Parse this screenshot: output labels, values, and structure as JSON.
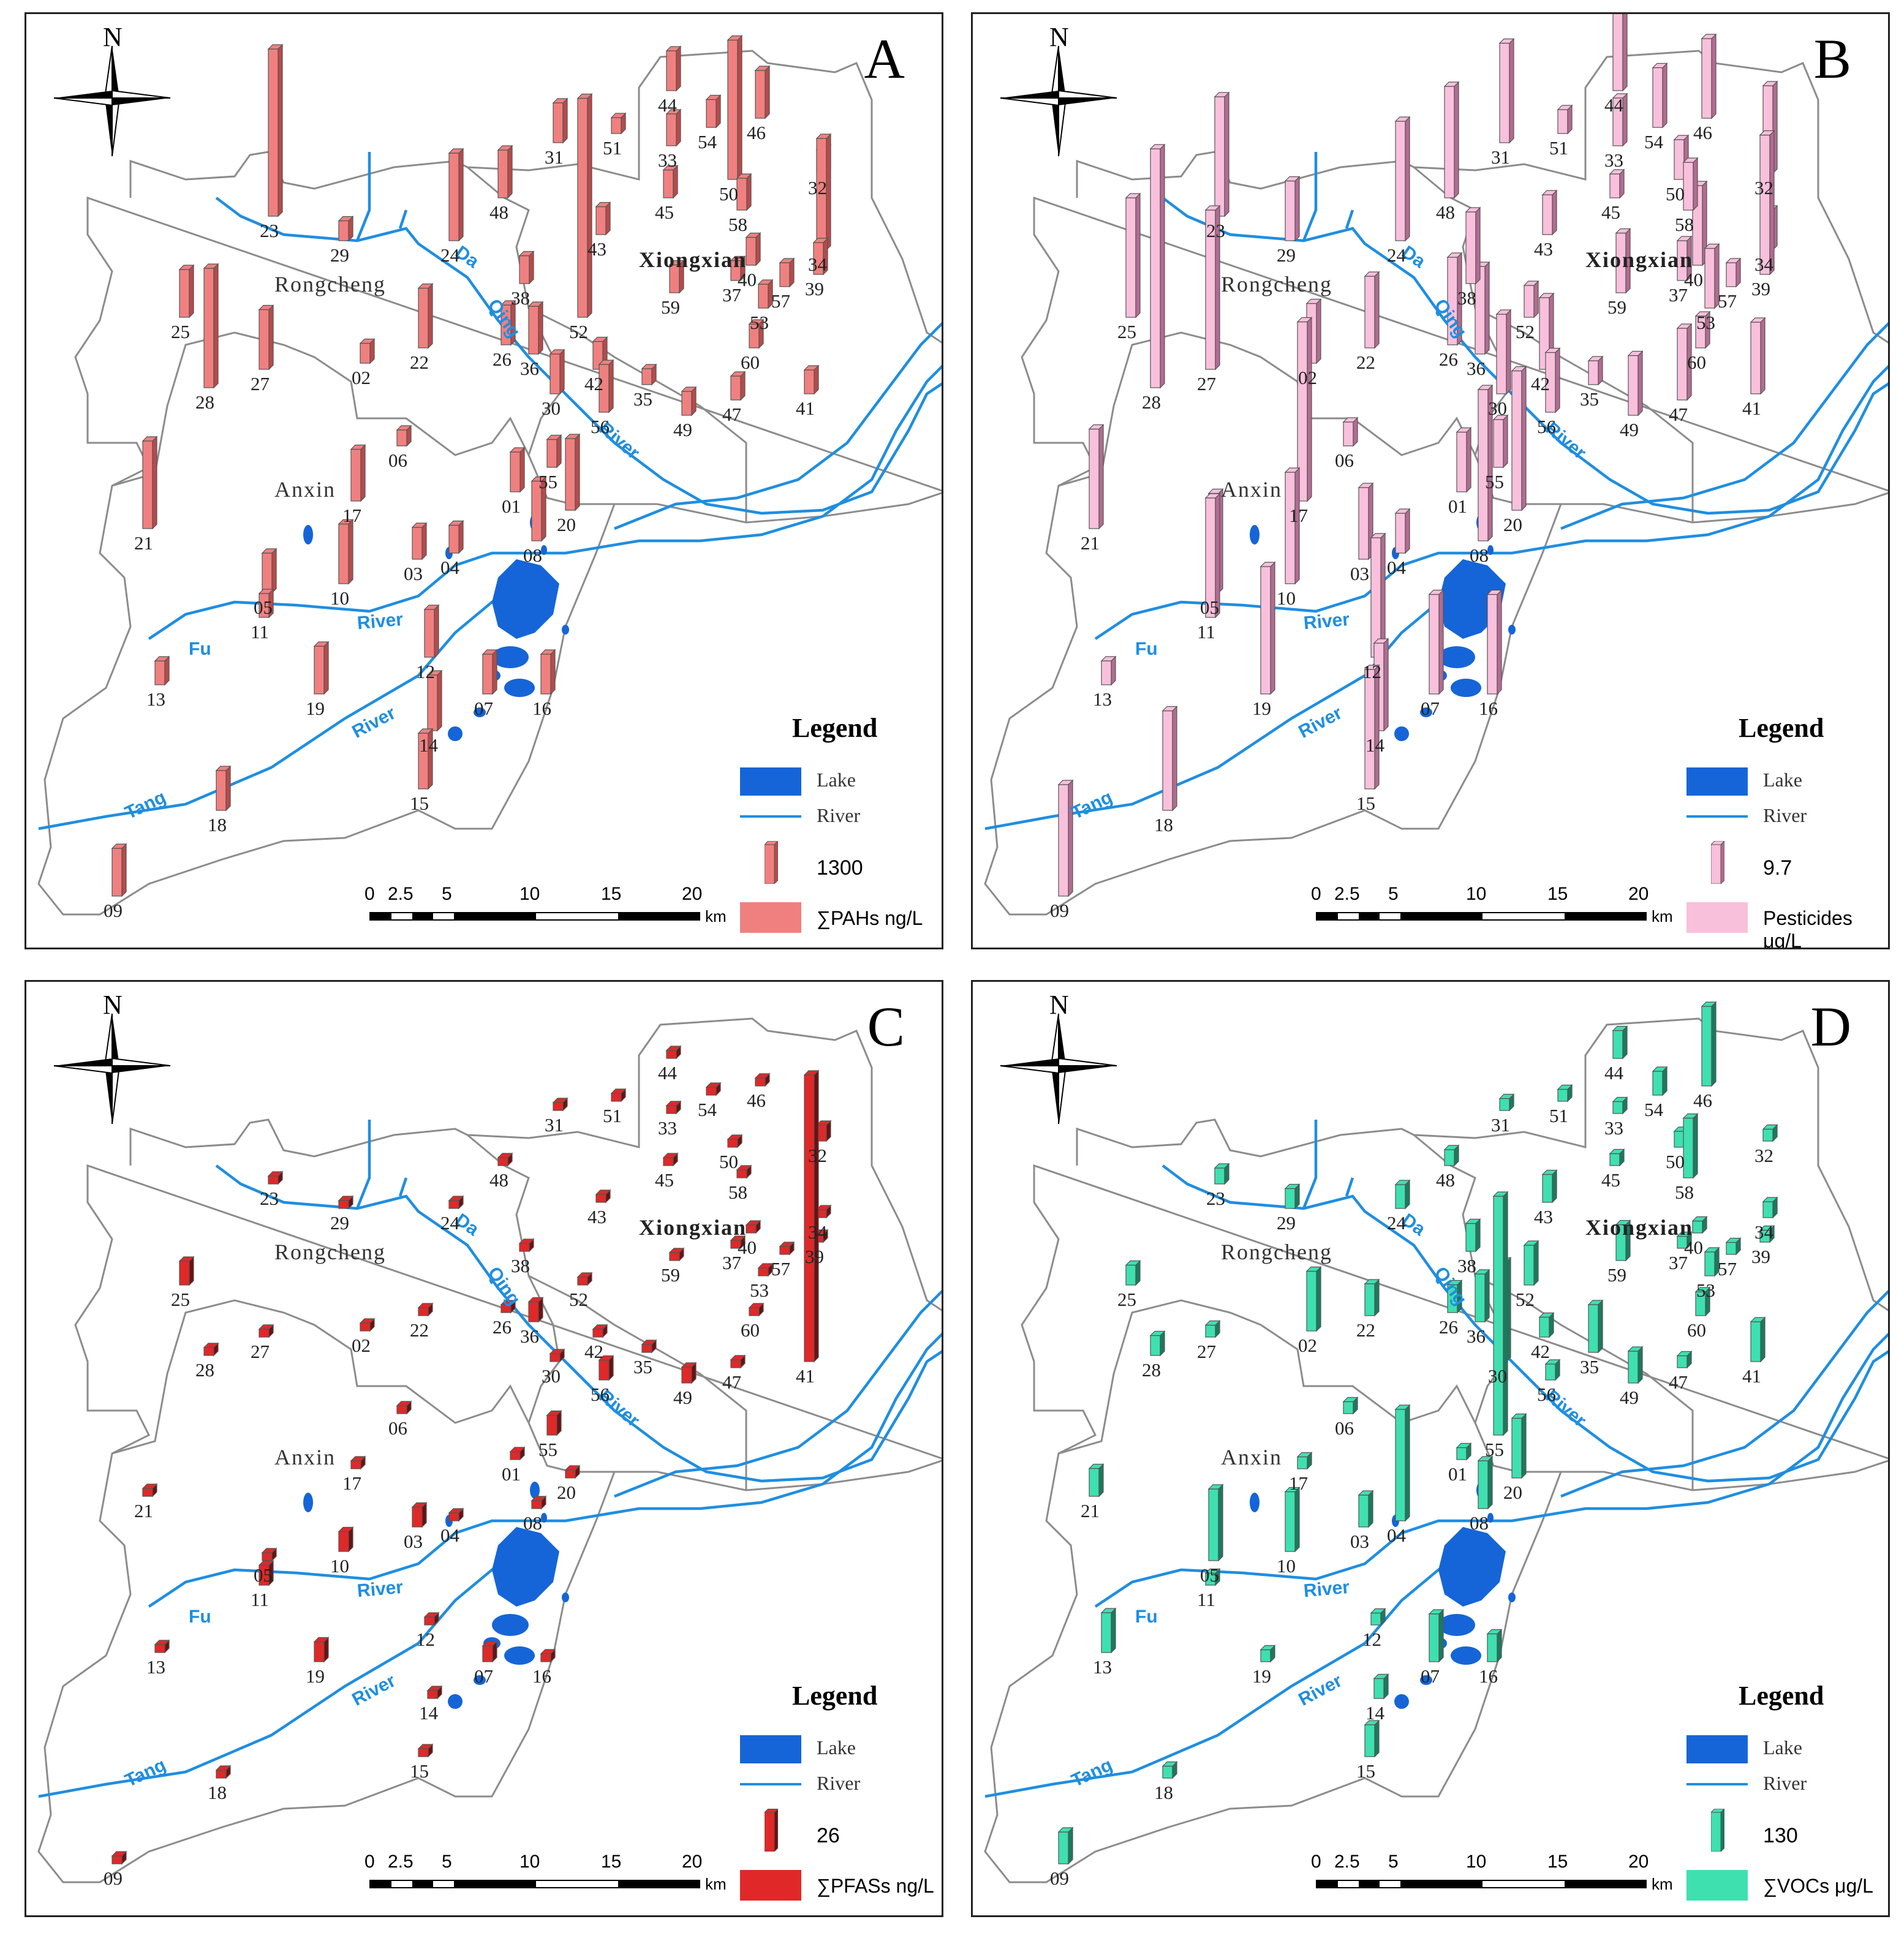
{
  "places": {
    "rongcheng": "Rongcheng",
    "anxin": "Anxin",
    "xiongxian": "Xiongxian"
  },
  "rivers": {
    "da": "Da",
    "qing": "Qing",
    "river": "River",
    "fu": "Fu",
    "tang": "Tang"
  },
  "legend": {
    "title": "Legend",
    "lake": "Lake",
    "river": "River"
  },
  "scale": {
    "ticks": [
      "0",
      "2.5",
      "5",
      "10",
      "15",
      "20"
    ],
    "unit": "km"
  },
  "colors": {
    "lake": "#1565d8",
    "river": "#1f8ee0",
    "boundary": "#8c8c8c"
  },
  "sites": [
    "01",
    "02",
    "03",
    "04",
    "05",
    "06",
    "07",
    "08",
    "09",
    "11",
    "12",
    "13",
    "14",
    "15",
    "16",
    "17",
    "18",
    "19",
    "20",
    "21",
    "22",
    "23",
    "24",
    "25",
    "26",
    "27",
    "28",
    "29",
    "30",
    "31",
    "32",
    "33",
    "34",
    "35",
    "36",
    "37",
    "38",
    "39",
    "40",
    "41",
    "42",
    "43",
    "44",
    "45",
    "46",
    "47",
    "48",
    "49",
    "50",
    "51",
    "52",
    "53",
    "54",
    "55",
    "56",
    "57",
    "58",
    "59",
    "60",
    "10"
  ],
  "panels": [
    {
      "letter": "A",
      "legend_value": "1300",
      "legend_unit": "∑PAHs ng/L",
      "bar_color": "#f08080",
      "bar_dark": "#b84a4a",
      "values": {
        "23": 0.42,
        "52": 0.55,
        "50": 0.35,
        "24": 0.22,
        "28": 0.3,
        "21": 0.22,
        "34": 0.28,
        "29": 0.05,
        "27": 0.15,
        "25": 0.12,
        "22": 0.15,
        "02": 0.05,
        "48": 0.12,
        "31": 0.1,
        "51": 0.04,
        "44": 0.1,
        "33": 0.08,
        "54": 0.07,
        "46": 0.12,
        "32": 0.06,
        "45": 0.07,
        "58": 0.08,
        "43": 0.07,
        "40": 0.07,
        "39": 0.08,
        "37": 0.05,
        "57": 0.06,
        "53": 0.06,
        "59": 0.07,
        "60": 0.06,
        "38": 0.07,
        "26": 0.1,
        "36": 0.12,
        "42": 0.07,
        "35": 0.04,
        "56": 0.12,
        "47": 0.06,
        "49": 0.06,
        "41": 0.06,
        "30": 0.1,
        "06": 0.04,
        "17": 0.13,
        "55": 0.07,
        "01": 0.1,
        "20": 0.18,
        "08": 0.15,
        "03": 0.08,
        "04": 0.07,
        "10": 0.15,
        "05": 0.1,
        "11": 0.06,
        "12": 0.12,
        "07": 0.1,
        "16": 0.1,
        "19": 0.12,
        "14": 0.14,
        "13": 0.06,
        "15": 0.14,
        "18": 0.1,
        "09": 0.12
      }
    },
    {
      "letter": "B",
      "legend_value": "9.7",
      "legend_unit": "Pesticides μg/L",
      "bar_color": "#f9c0dc",
      "bar_dark": "#b36b91",
      "values": {
        "23": 0.3,
        "52": 0.08,
        "50": 0.1,
        "24": 0.3,
        "28": 0.6,
        "21": 0.25,
        "34": 0.1,
        "29": 0.15,
        "27": 0.4,
        "25": 0.3,
        "22": 0.18,
        "02": 0.15,
        "48": 0.28,
        "31": 0.25,
        "51": 0.06,
        "44": 0.25,
        "33": 0.12,
        "54": 0.15,
        "46": 0.2,
        "32": 0.22,
        "45": 0.06,
        "58": 0.12,
        "43": 0.1,
        "40": 0.2,
        "39": 0.35,
        "37": 0.1,
        "57": 0.06,
        "53": 0.15,
        "59": 0.15,
        "60": 0.08,
        "38": 0.18,
        "26": 0.22,
        "36": 0.22,
        "42": 0.18,
        "35": 0.06,
        "56": 0.15,
        "47": 0.18,
        "49": 0.15,
        "41": 0.18,
        "30": 0.2,
        "06": 0.06,
        "17": 0.45,
        "55": 0.12,
        "01": 0.15,
        "20": 0.35,
        "08": 0.38,
        "03": 0.18,
        "04": 0.1,
        "10": 0.28,
        "05": 0.25,
        "11": 0.3,
        "12": 0.3,
        "07": 0.25,
        "16": 0.25,
        "19": 0.32,
        "14": 0.22,
        "13": 0.06,
        "15": 0.3,
        "18": 0.25,
        "09": 0.28
      }
    },
    {
      "letter": "C",
      "legend_value": "26",
      "legend_unit": "∑PFASs ng/L",
      "bar_color": "#e02828",
      "bar_dark": "#6e1010",
      "values": {
        "23": 0.02,
        "52": 0.02,
        "50": 0.02,
        "24": 0.02,
        "28": 0.02,
        "21": 0.02,
        "34": 0.02,
        "29": 0.02,
        "27": 0.02,
        "25": 0.06,
        "22": 0.02,
        "02": 0.02,
        "48": 0.02,
        "31": 0.02,
        "51": 0.02,
        "44": 0.02,
        "33": 0.02,
        "54": 0.02,
        "46": 0.02,
        "32": 0.04,
        "45": 0.02,
        "58": 0.02,
        "43": 0.02,
        "40": 0.02,
        "39": 0.02,
        "37": 0.02,
        "57": 0.02,
        "53": 0.02,
        "59": 0.02,
        "60": 0.02,
        "38": 0.02,
        "26": 0.02,
        "36": 0.05,
        "42": 0.02,
        "35": 0.02,
        "56": 0.05,
        "47": 0.02,
        "49": 0.04,
        "41": 0.72,
        "30": 0.02,
        "06": 0.02,
        "17": 0.02,
        "55": 0.05,
        "01": 0.02,
        "20": 0.02,
        "08": 0.02,
        "03": 0.05,
        "04": 0.02,
        "10": 0.05,
        "05": 0.02,
        "11": 0.05,
        "12": 0.02,
        "07": 0.04,
        "16": 0.02,
        "19": 0.05,
        "14": 0.02,
        "13": 0.02,
        "15": 0.02,
        "18": 0.02,
        "09": 0.02
      }
    },
    {
      "letter": "D",
      "legend_value": "130",
      "legend_unit": "∑VOCs  μg/L",
      "bar_color": "#3ee0b0",
      "bar_dark": "#1a7a5e",
      "values": {
        "23": 0.04,
        "52": 0.1,
        "50": 0.04,
        "24": 0.06,
        "28": 0.05,
        "21": 0.07,
        "34": 0.04,
        "29": 0.05,
        "27": 0.03,
        "25": 0.05,
        "22": 0.08,
        "02": 0.15,
        "48": 0.04,
        "31": 0.03,
        "51": 0.03,
        "44": 0.07,
        "33": 0.03,
        "54": 0.06,
        "46": 0.2,
        "32": 0.03,
        "45": 0.03,
        "58": 0.15,
        "43": 0.07,
        "40": 0.03,
        "39": 0.03,
        "37": 0.03,
        "57": 0.03,
        "53": 0.06,
        "59": 0.09,
        "60": 0.06,
        "38": 0.07,
        "26": 0.07,
        "36": 0.12,
        "42": 0.05,
        "35": 0.12,
        "56": 0.04,
        "47": 0.03,
        "49": 0.08,
        "41": 0.1,
        "30": 0.25,
        "06": 0.03,
        "17": 0.03,
        "55": 0.6,
        "01": 0.03,
        "20": 0.15,
        "08": 0.12,
        "03": 0.08,
        "04": 0.28,
        "10": 0.15,
        "05": 0.18,
        "11": 0.03,
        "12": 0.03,
        "07": 0.12,
        "16": 0.07,
        "19": 0.03,
        "14": 0.05,
        "13": 0.1,
        "15": 0.08,
        "18": 0.03,
        "09": 0.08
      }
    }
  ]
}
